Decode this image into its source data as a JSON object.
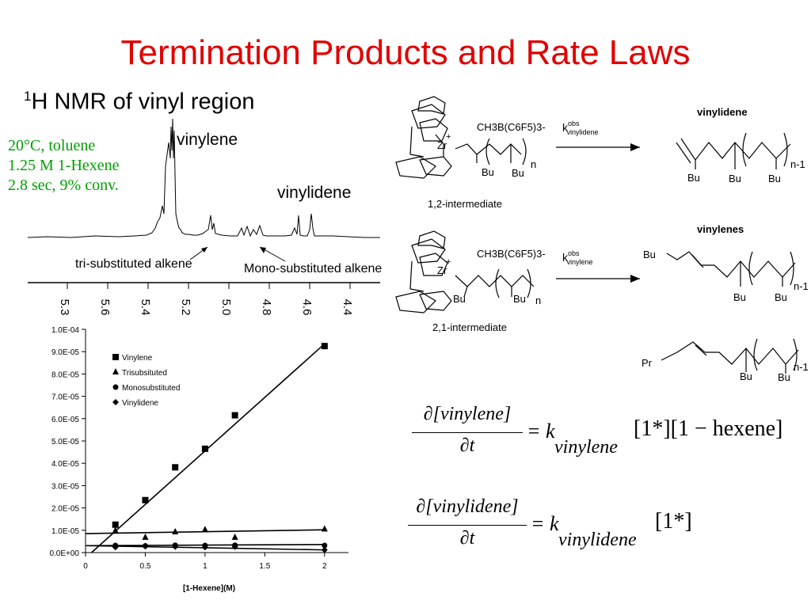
{
  "title": "Termination Products and Rate Laws",
  "subtitle": {
    "sup": "1",
    "text": "H NMR of vinyl region"
  },
  "conditions": [
    "20°C, toluene",
    "1.25 M 1-Hexene",
    "2.8 sec, 9% conv."
  ],
  "nmr": {
    "peak_labels": [
      "vinylene",
      "vinylidene"
    ],
    "annotations": [
      "tri-substituted alkene",
      "Mono-substituted alkene"
    ],
    "axis_ticks": [
      "5.3",
      "5.6",
      "5.4",
      "5.2",
      "5.0",
      "4.8",
      "4.6",
      "4.4"
    ]
  },
  "scheme": {
    "reagent1": "CH3B(C6F5)3-",
    "k1": "k",
    "k1_sup": "obs",
    "k1_sub": "vinylidene",
    "intermediate1": "1,2-intermediate",
    "product1_title": "vinylidene",
    "reagent2": "CH3B(C6F5)3-",
    "k2": "k",
    "k2_sup": "obs",
    "k2_sub": "vinylene",
    "intermediate2": "2,1-intermediate",
    "product2_title": "vinylenes",
    "zr": "Zr",
    "plus": "+",
    "bu": "Bu",
    "pr": "Pr",
    "n": "n",
    "n1": "n-1"
  },
  "equations": {
    "eq1": {
      "num": "∂[vinylene]",
      "den": "∂t",
      "rhs_k": "= k",
      "rhs_sub": "vinylene",
      "rhs_terms": "[1*][1 − hexene]"
    },
    "eq2": {
      "num": "∂[vinylidene]",
      "den": "∂t",
      "rhs_k": "= k",
      "rhs_sub": "vinylidene",
      "rhs_terms": "[1*]"
    }
  },
  "chart_data": {
    "type": "scatter",
    "xlabel": "[1-Hexene](M)",
    "ylabel": "",
    "xlim": [
      0,
      2.2
    ],
    "ylim": [
      0,
      0.0001
    ],
    "x_ticks": [
      0,
      0.5,
      1,
      1.5,
      2
    ],
    "x_tick_labels": [
      "0",
      "0.5",
      "1",
      "1.5",
      "2"
    ],
    "y_ticks": [
      0,
      1e-05,
      2e-05,
      3e-05,
      4e-05,
      5e-05,
      6e-05,
      7e-05,
      8e-05,
      9e-05,
      0.0001
    ],
    "y_tick_labels": [
      "0.0E+00",
      "1.0E-05",
      "2.0E-05",
      "3.0E-05",
      "4.0E-05",
      "5.0E-05",
      "6.0E-05",
      "7.0E-05",
      "8.0E-05",
      "9.0E-05",
      "1.0E-04"
    ],
    "grid": false,
    "legend_position": "top-left",
    "series": [
      {
        "name": "Vinylene",
        "marker": "square",
        "x": [
          0.25,
          0.5,
          0.75,
          1.0,
          1.25,
          2.0
        ],
        "y": [
          1.25e-05,
          2.35e-05,
          3.82e-05,
          4.65e-05,
          6.15e-05,
          9.25e-05
        ],
        "fit": [
          [
            0.05,
            0.0
          ],
          [
            2.0,
            9.35e-05
          ]
        ]
      },
      {
        "name": "Trisubsituted",
        "marker": "triangle",
        "x": [
          0.25,
          0.5,
          0.75,
          1.0,
          1.25,
          2.0
        ],
        "y": [
          9.8e-06,
          6.8e-06,
          9.2e-06,
          1.02e-05,
          6.8e-06,
          1.05e-05
        ],
        "fit": [
          [
            0.0,
            8.5e-06
          ],
          [
            2.0,
            1.02e-05
          ]
        ]
      },
      {
        "name": "Monosubstituted",
        "marker": "circle",
        "x": [
          0.25,
          0.5,
          0.75,
          1.0,
          1.25,
          2.0
        ],
        "y": [
          3.2e-06,
          3e-06,
          3.3e-06,
          3.2e-06,
          3.3e-06,
          3.2e-06
        ],
        "fit": [
          [
            0.0,
            3.1e-06
          ],
          [
            2.0,
            3.6e-06
          ]
        ]
      },
      {
        "name": "Vinylidene",
        "marker": "diamond",
        "x": [
          0.25,
          0.5,
          0.75,
          1.0,
          1.25,
          2.0
        ],
        "y": [
          2.4e-06,
          2.8e-06,
          2.6e-06,
          2.4e-06,
          2.6e-06,
          1.2e-06
        ],
        "fit": [
          [
            0.0,
            3.1e-06
          ],
          [
            2.0,
            1.2e-06
          ]
        ]
      }
    ]
  }
}
